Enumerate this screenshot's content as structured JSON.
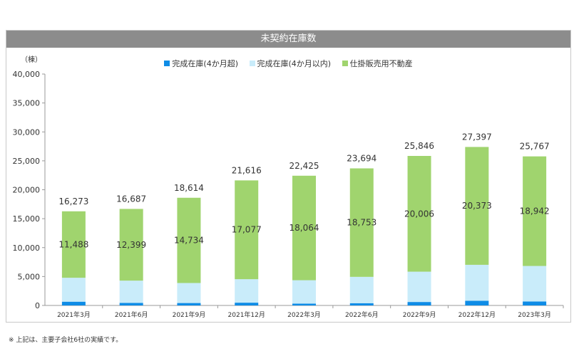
{
  "chart_data": {
    "type": "bar",
    "stacked": true,
    "title": "未契約在庫数",
    "unit_label": "（棟）",
    "categories": [
      "2021年3月",
      "2021年6月",
      "2021年9月",
      "2021年12月",
      "2022年3月",
      "2022年6月",
      "2022年9月",
      "2022年12月",
      "2023年3月"
    ],
    "series": [
      {
        "name": "完成在庫(4か月超)",
        "color": "#0f8ce6",
        "values": [
          650,
          450,
          420,
          480,
          310,
          390,
          600,
          800,
          680
        ]
      },
      {
        "name": "完成在庫(4か月以内)",
        "color": "#c9ecfa",
        "values": [
          4135,
          3838,
          3460,
          4059,
          4051,
          4551,
          5240,
          6224,
          6145
        ]
      },
      {
        "name": "仕掛販売用不動産",
        "color": "#a0d46e",
        "values": [
          11488,
          12399,
          14734,
          17077,
          18064,
          18753,
          20006,
          20373,
          18942
        ]
      }
    ],
    "totals": [
      16273,
      16687,
      18614,
      21616,
      22425,
      23694,
      25846,
      27397,
      25767
    ],
    "total_labels": [
      "16,273",
      "16,687",
      "18,614",
      "21,616",
      "22,425",
      "23,694",
      "25,846",
      "27,397",
      "25,767"
    ],
    "segment_labels": [
      "11,488",
      "12,399",
      "14,734",
      "17,077",
      "18,064",
      "18,753",
      "20,006",
      "20,373",
      "18,942"
    ],
    "ylim": [
      0,
      40000
    ],
    "yticks": [
      0,
      5000,
      10000,
      15000,
      20000,
      25000,
      30000,
      35000,
      40000
    ],
    "ytick_labels": [
      "0",
      "5,000",
      "10,000",
      "15,000",
      "20,000",
      "25,000",
      "30,000",
      "35,000",
      "40,000"
    ],
    "legend_position": "top-center",
    "grid": false
  },
  "footnote": "※ 上記は、主要子会社6社の実績です。"
}
